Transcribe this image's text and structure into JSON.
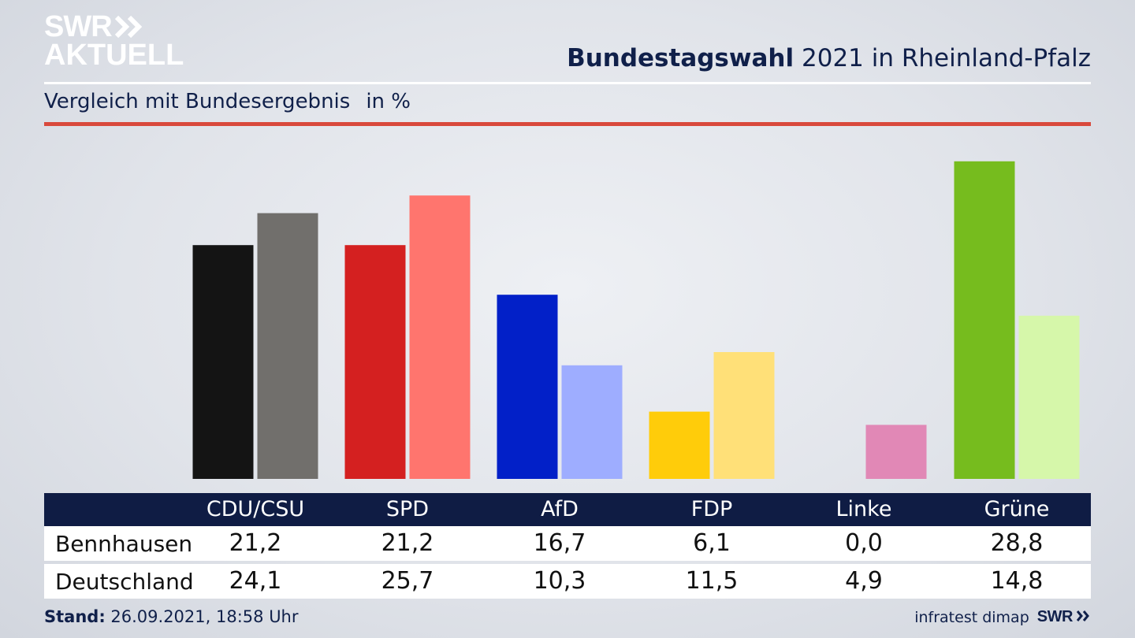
{
  "header": {
    "logo_line1": "SWR",
    "logo_line2": "AKTUELL",
    "title_bold": "Bundestagswahl",
    "title_rest": "2021 in Rheinland-Pfalz",
    "subtitle": "Vergleich mit Bundesergebnis",
    "unit": "in %"
  },
  "colors": {
    "header_bar": "#0f1c44",
    "accent_rule": "#d9493c",
    "text_dark": "#10204a"
  },
  "chart_data": {
    "type": "bar",
    "title": "Bundestagswahl 2021 in Rheinland-Pfalz",
    "subtitle": "Vergleich mit Bundesergebnis",
    "ylabel": "in %",
    "categories": [
      "CDU/CSU",
      "SPD",
      "AfD",
      "FDP",
      "Linke",
      "Grüne"
    ],
    "series": [
      {
        "name": "Bennhausen",
        "values": [
          21.2,
          21.2,
          16.7,
          6.1,
          0.0,
          28.8
        ],
        "colors": [
          "#141414",
          "#d42020",
          "#0220c8",
          "#ffcc0a",
          "#c85898",
          "#76bc1e"
        ]
      },
      {
        "name": "Deutschland",
        "values": [
          24.1,
          25.7,
          10.3,
          11.5,
          4.9,
          14.8
        ],
        "colors": [
          "#716f6c",
          "#ff756e",
          "#9eadff",
          "#ffe078",
          "#e188b6",
          "#d6f7aa"
        ]
      }
    ],
    "value_labels": [
      [
        "21,2",
        "21,2",
        "16,7",
        "6,1",
        "0,0",
        "28,8"
      ],
      [
        "24,1",
        "25,7",
        "10,3",
        "11,5",
        "4,9",
        "14,8"
      ]
    ],
    "ylim": [
      0,
      30
    ],
    "grid": false
  },
  "footer": {
    "stand_label": "Stand:",
    "stand_value": "26.09.2021, 18:58 Uhr",
    "source": "infratest dimap",
    "brand": "SWR"
  }
}
